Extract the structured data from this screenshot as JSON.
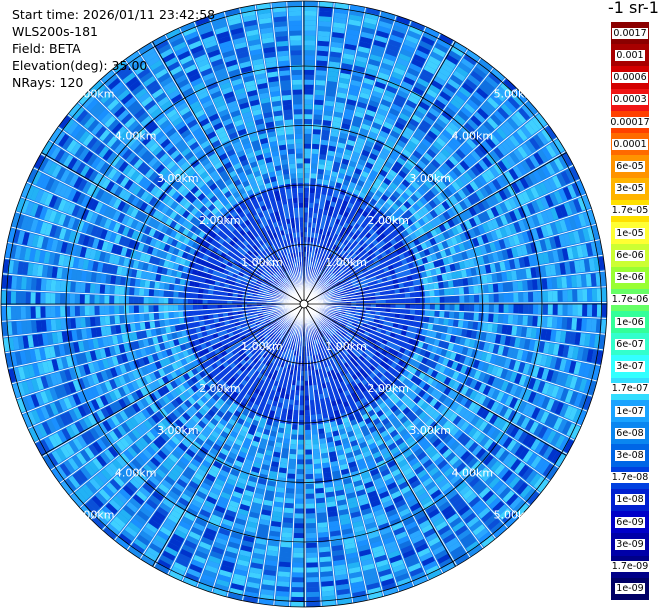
{
  "info": {
    "start_time": "Start time: 2026/01/11 23:42:58",
    "instrument": "WLS200s-181",
    "field": "Field: BETA",
    "elevation": "Elevation(deg): 35.00",
    "nrays": "NRays: 120"
  },
  "colorbar": {
    "title": "-1 sr-1",
    "labels": [
      "0.0017",
      "0.001",
      "0.0006",
      "0.0003",
      "0.00017",
      "0.0001",
      "6e-05",
      "3e-05",
      "1.7e-05",
      "1e-05",
      "6e-06",
      "3e-06",
      "1.7e-06",
      "1e-06",
      "6e-07",
      "3e-07",
      "1.7e-07",
      "1e-07",
      "6e-08",
      "3e-08",
      "1.7e-08",
      "1e-08",
      "6e-09",
      "3e-09",
      "1.7e-09",
      "1e-09"
    ],
    "colors": [
      "#8b0000",
      "#a80000",
      "#d40000",
      "#f01414",
      "#ff4000",
      "#ff6a00",
      "#ff9400",
      "#ffb400",
      "#ffe000",
      "#ffff33",
      "#ccff33",
      "#99ff33",
      "#66ff66",
      "#33ff99",
      "#33ffcc",
      "#33ffff",
      "#33ddff",
      "#1aa3ff",
      "#0a86f0",
      "#0066e6",
      "#0040e0",
      "#0020d0",
      "#0000c8",
      "#0000a8",
      "#000088",
      "#000066"
    ]
  },
  "range_rings": {
    "labels": [
      "1.00km",
      "2.00km",
      "3.00km",
      "4.00km",
      "5.00km"
    ]
  }
}
